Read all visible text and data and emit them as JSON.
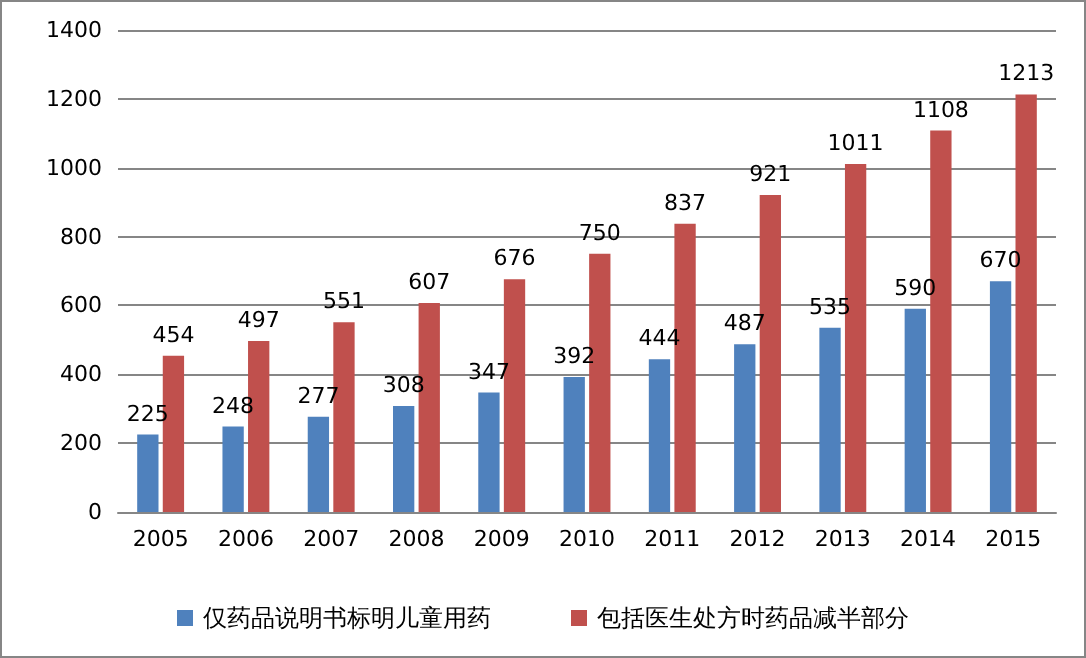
{
  "chart_data": {
    "type": "bar",
    "categories": [
      "2005",
      "2006",
      "2007",
      "2008",
      "2009",
      "2010",
      "2011",
      "2012",
      "2013",
      "2014",
      "2015"
    ],
    "series": [
      {
        "name": "仅药品说明书标明儿童用药",
        "color": "#4f81bd",
        "values": [
          225,
          248,
          277,
          308,
          347,
          392,
          444,
          487,
          535,
          590,
          670
        ]
      },
      {
        "name": "包括医生处方时药品减半部分",
        "color": "#c0504d",
        "values": [
          454,
          497,
          551,
          607,
          676,
          750,
          837,
          921,
          1011,
          1108,
          1213
        ]
      }
    ],
    "ylim": [
      0,
      1400
    ],
    "yticks": [
      0,
      200,
      400,
      600,
      800,
      1000,
      1200,
      1400
    ],
    "grid": "y",
    "legend": "bottom",
    "data_labels": true
  }
}
